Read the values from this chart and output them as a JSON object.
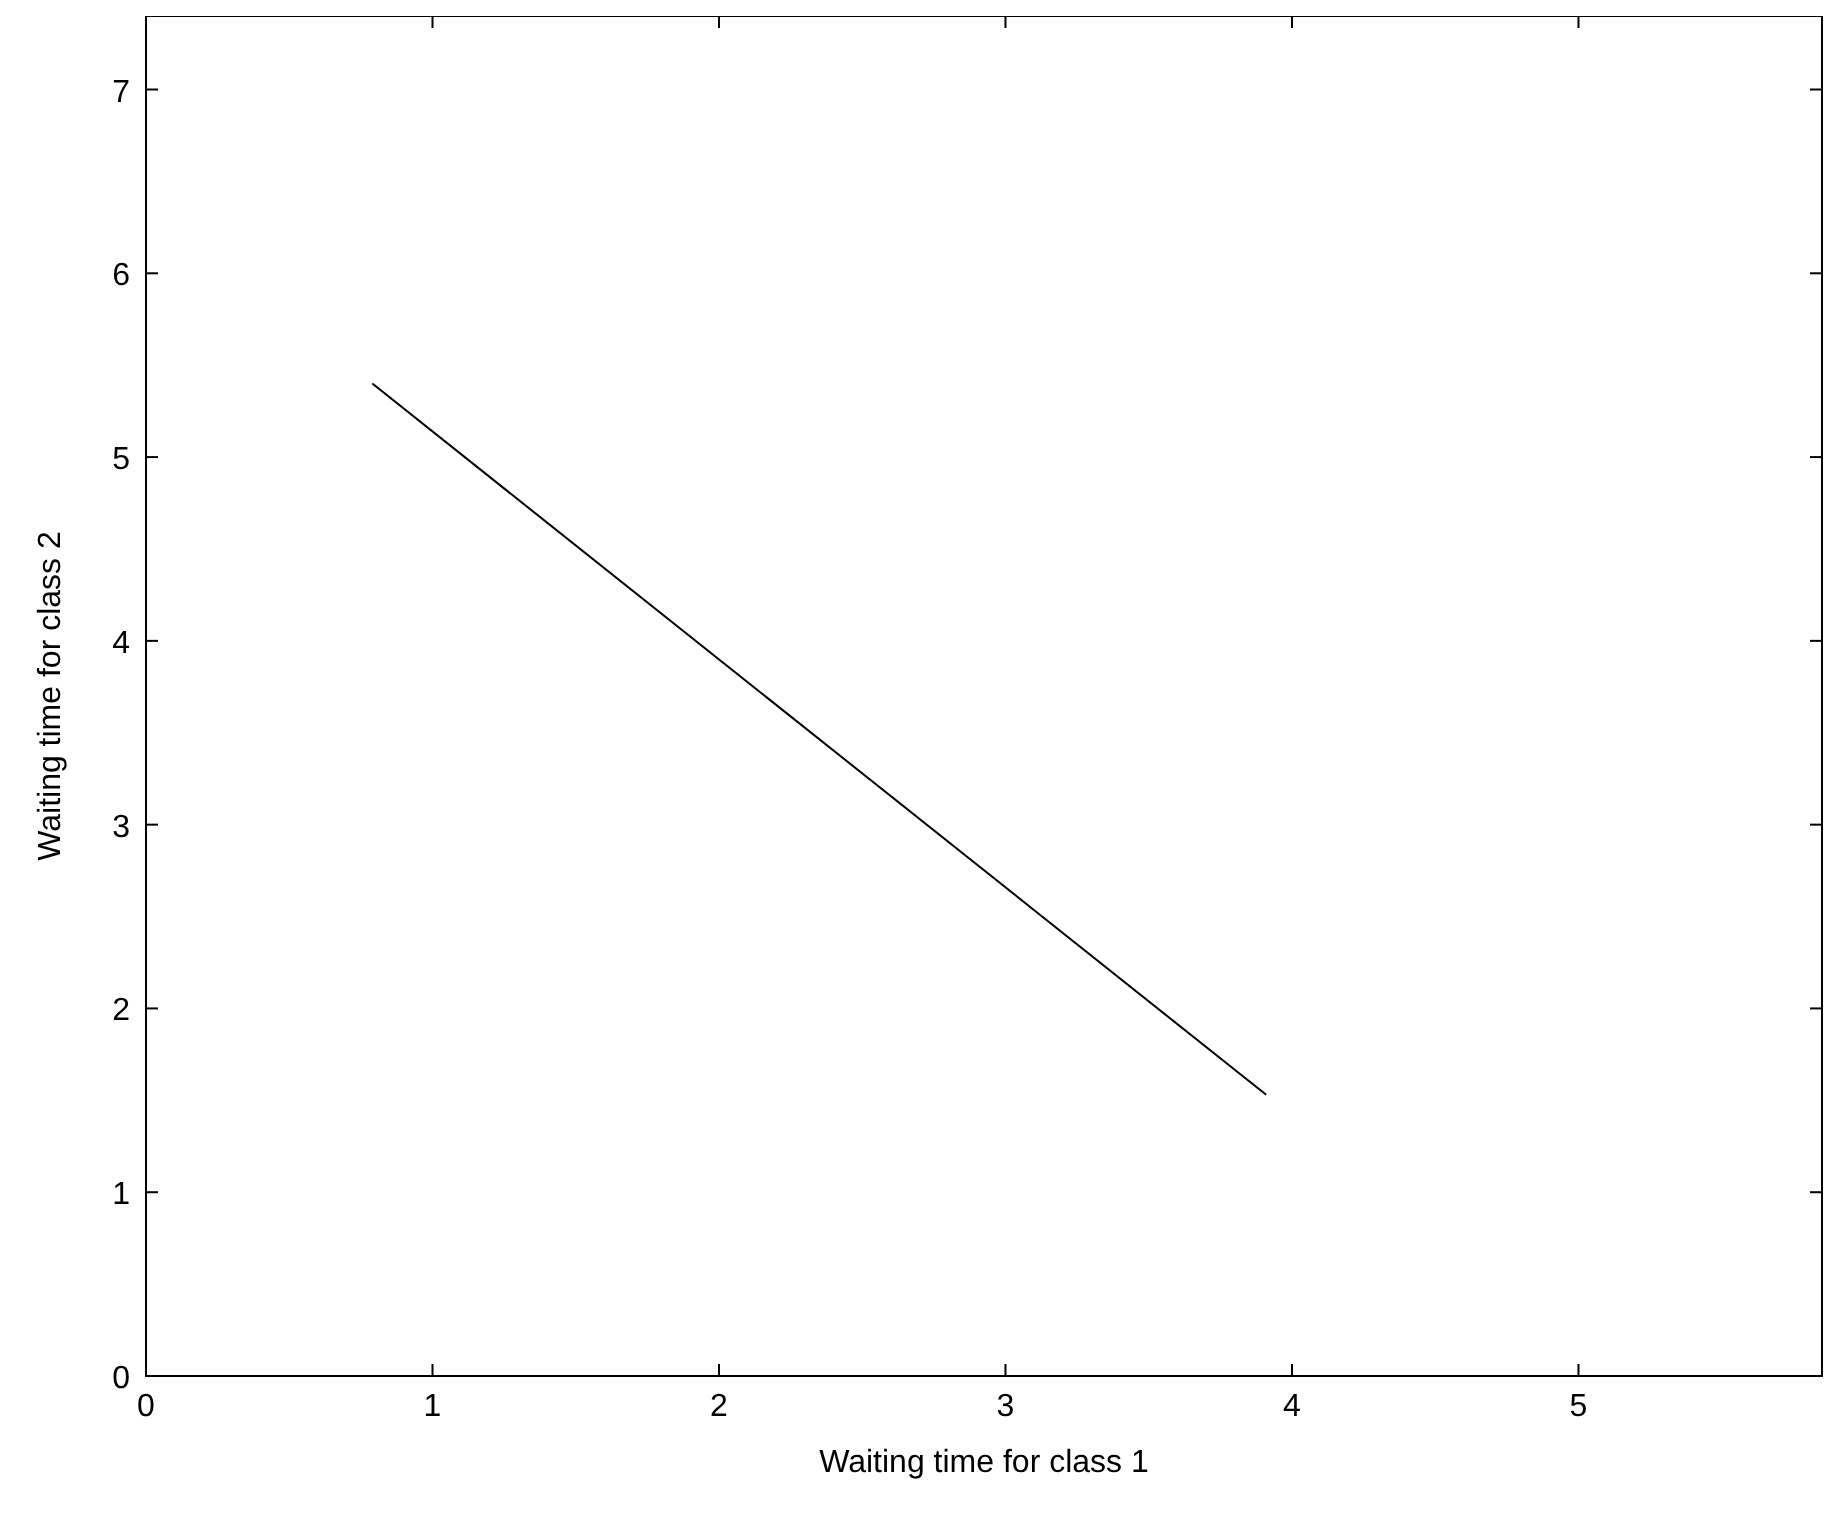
{
  "chart_data": {
    "type": "line",
    "xlabel": "Waiting time for class 1",
    "ylabel": "Waiting time for class 2",
    "x": [
      0.79,
      3.91
    ],
    "series": [
      {
        "color": "#000000",
        "values": [
          5.4,
          1.53
        ]
      }
    ],
    "xlim": [
      0,
      5.85
    ],
    "xticks": [
      0,
      1,
      2,
      3,
      4,
      5
    ],
    "ylim": [
      0,
      7.4
    ],
    "yticks": [
      0,
      1,
      2,
      3,
      4,
      5,
      6,
      7
    ],
    "grid": false,
    "marker": "none",
    "line_style": "solid"
  }
}
